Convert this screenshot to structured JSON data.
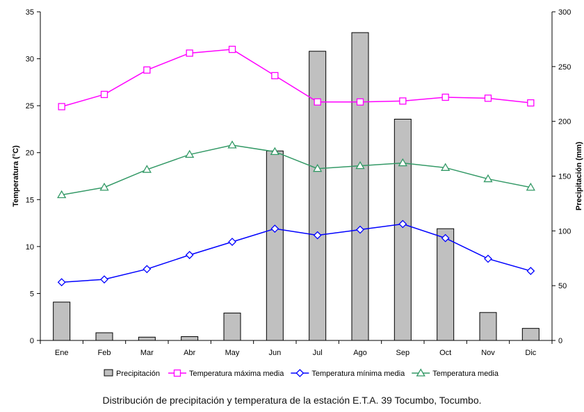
{
  "chart_data": {
    "type": "bar+line",
    "categories": [
      "Ene",
      "Feb",
      "Mar",
      "Abr",
      "May",
      "Jun",
      "Jul",
      "Ago",
      "Sep",
      "Oct",
      "Nov",
      "Dic"
    ],
    "left_axis": {
      "label": "Temperatura (°C)",
      "range": [
        0,
        35
      ],
      "ticks": [
        0,
        5,
        10,
        15,
        20,
        25,
        30,
        35
      ]
    },
    "right_axis": {
      "label": "Precipitación (mm)",
      "range": [
        0,
        300
      ],
      "ticks": [
        0,
        50,
        100,
        150,
        200,
        250,
        300
      ]
    },
    "bars": {
      "name": "Precipitación",
      "axis": "right",
      "color": "#c0c0c0",
      "values": [
        35,
        7,
        3,
        3.5,
        25,
        173,
        264,
        281,
        202,
        102,
        25.5,
        11
      ]
    },
    "series": [
      {
        "name": "Temperatura máxima media",
        "axis": "left",
        "color": "#ff00ff",
        "marker": "square",
        "values": [
          24.9,
          26.2,
          28.8,
          30.6,
          31.0,
          28.2,
          25.4,
          25.4,
          25.5,
          25.9,
          25.8,
          25.3
        ]
      },
      {
        "name": "Temperatura mínima media",
        "axis": "left",
        "color": "#0000ff",
        "marker": "diamond",
        "values": [
          6.2,
          6.5,
          7.6,
          9.1,
          10.5,
          11.9,
          11.2,
          11.8,
          12.4,
          10.9,
          8.7,
          7.4
        ]
      },
      {
        "name": "Temperatura media",
        "axis": "left",
        "color": "#339966",
        "marker": "triangle",
        "values": [
          15.5,
          16.3,
          18.2,
          19.8,
          20.8,
          20.1,
          18.3,
          18.6,
          18.9,
          18.4,
          17.2,
          16.3
        ]
      }
    ],
    "legend_position": "bottom",
    "grid": false,
    "caption": "Distribución de precipitación y temperatura de la estación E.T.A. 39 Tocumbo, Tocumbo."
  }
}
